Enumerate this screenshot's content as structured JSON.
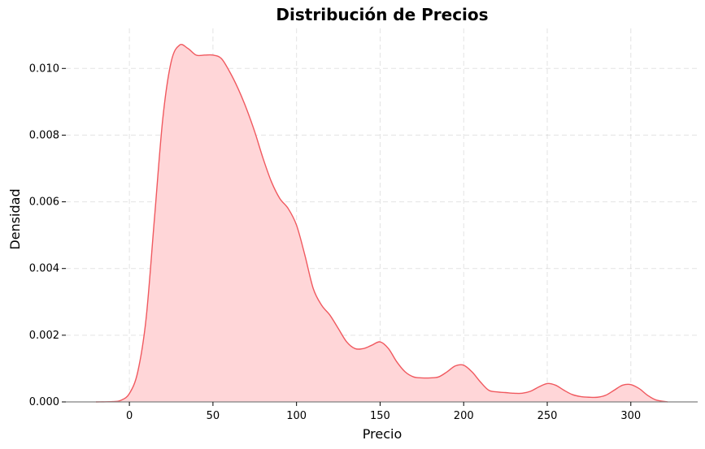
{
  "chart_data": {
    "type": "area",
    "title": "Distribución de Precios",
    "xlabel": "Precio",
    "ylabel": "Densidad",
    "xlim": [
      -38,
      340
    ],
    "ylim": [
      0,
      0.0112
    ],
    "xticks": [
      0,
      50,
      100,
      150,
      200,
      250,
      300
    ],
    "yticks": [
      0.0,
      0.002,
      0.004,
      0.006,
      0.008,
      0.01
    ],
    "ytick_labels": [
      "0.000",
      "0.002",
      "0.004",
      "0.006",
      "0.008",
      "0.010"
    ],
    "grid": true,
    "line_color": "#f0595f",
    "fill_color": "#ffd6d8",
    "series": [
      {
        "x": [
          -20,
          -10,
          -5,
          0,
          5,
          10,
          15,
          20,
          25,
          30,
          35,
          40,
          45,
          50,
          55,
          60,
          65,
          70,
          75,
          80,
          85,
          90,
          95,
          100,
          105,
          110,
          115,
          120,
          125,
          130,
          135,
          140,
          145,
          150,
          155,
          160,
          165,
          170,
          175,
          180,
          185,
          190,
          195,
          200,
          205,
          210,
          215,
          220,
          225,
          230,
          235,
          240,
          245,
          250,
          255,
          260,
          265,
          270,
          275,
          280,
          285,
          290,
          295,
          300,
          305,
          310,
          315,
          322
        ],
        "y": [
          0.0,
          1e-05,
          5e-05,
          0.00025,
          0.0009,
          0.0025,
          0.0055,
          0.0085,
          0.0102,
          0.0107,
          0.0106,
          0.0104,
          0.0104,
          0.0104,
          0.0103,
          0.0099,
          0.0094,
          0.0088,
          0.0081,
          0.0073,
          0.0066,
          0.0061,
          0.0058,
          0.0053,
          0.0044,
          0.0034,
          0.0029,
          0.0026,
          0.0022,
          0.0018,
          0.0016,
          0.0016,
          0.0017,
          0.0018,
          0.0016,
          0.0012,
          0.0009,
          0.00075,
          0.00072,
          0.00072,
          0.00075,
          0.0009,
          0.00108,
          0.0011,
          0.0009,
          0.0006,
          0.00035,
          0.0003,
          0.00028,
          0.00026,
          0.00026,
          0.00032,
          0.00045,
          0.00055,
          0.0005,
          0.00035,
          0.00022,
          0.00016,
          0.00014,
          0.00014,
          0.0002,
          0.00035,
          0.0005,
          0.00052,
          0.0004,
          0.0002,
          6e-05,
          0.0
        ]
      }
    ]
  }
}
